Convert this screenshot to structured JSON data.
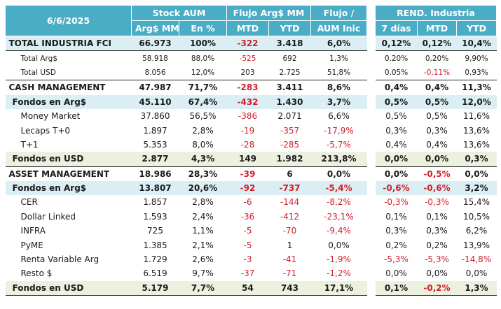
{
  "header": {
    "date": "6/6/2025",
    "stock_aum": "Stock AUM",
    "flujo": "Flujo Arg$ MM",
    "flujo_aum_1": "Flujo /",
    "flujo_aum_2": "AUM Inic",
    "arg_mm": "Arg$ MM",
    "en_pct": "En %",
    "mtd": "MTD",
    "ytd": "YTD",
    "rend_title": "REND. Industria",
    "rend_7d": "7 días",
    "rend_mtd": "MTD",
    "rend_ytd": "YTD"
  },
  "rows": [
    {
      "label": "TOTAL INDUSTRIA FCI",
      "arg": "66.973",
      "pct": "100%",
      "mtd": "-322",
      "ytd": "3.418",
      "flujo": "6,0%",
      "r7": "0,12%",
      "rmtd": "0,12%",
      "rytd": "10,4%"
    },
    {
      "label": "Total Arg$",
      "arg": "58.918",
      "pct": "88,0%",
      "mtd": "-525",
      "ytd": "692",
      "flujo": "1,3%",
      "r7": "0,20%",
      "rmtd": "0,20%",
      "rytd": "9,90%"
    },
    {
      "label": "Total USD",
      "arg": "8.056",
      "pct": "12,0%",
      "mtd": "203",
      "ytd": "2.725",
      "flujo": "51,8%",
      "r7": "0,05%",
      "rmtd": "-0,11%",
      "rytd": "0,93%"
    },
    {
      "label": "CASH MANAGEMENT",
      "arg": "47.987",
      "pct": "71,7%",
      "mtd": "-283",
      "ytd": "3.411",
      "flujo": "8,6%",
      "r7": "0,4%",
      "rmtd": "0,4%",
      "rytd": "11,3%"
    },
    {
      "label": "Fondos en Arg$",
      "arg": "45.110",
      "pct": "67,4%",
      "mtd": "-432",
      "ytd": "1.430",
      "flujo": "3,7%",
      "r7": "0,5%",
      "rmtd": "0,5%",
      "rytd": "12,0%"
    },
    {
      "label": "Money Market",
      "arg": "37.860",
      "pct": "56,5%",
      "mtd": "-386",
      "ytd": "2.071",
      "flujo": "6,6%",
      "r7": "0,5%",
      "rmtd": "0,5%",
      "rytd": "11,6%"
    },
    {
      "label": "Lecaps T+0",
      "arg": "1.897",
      "pct": "2,8%",
      "mtd": "-19",
      "ytd": "-357",
      "flujo": "-17,9%",
      "r7": "0,3%",
      "rmtd": "0,3%",
      "rytd": "13,6%"
    },
    {
      "label": "T+1",
      "arg": "5.353",
      "pct": "8,0%",
      "mtd": "-28",
      "ytd": "-285",
      "flujo": "-5,7%",
      "r7": "0,4%",
      "rmtd": "0,4%",
      "rytd": "13,6%"
    },
    {
      "label": "Fondos en USD",
      "arg": "2.877",
      "pct": "4,3%",
      "mtd": "149",
      "ytd": "1.982",
      "flujo": "213,8%",
      "r7": "0,0%",
      "rmtd": "0,0%",
      "rytd": "0,3%"
    },
    {
      "label": "ASSET MANAGEMENT",
      "arg": "18.986",
      "pct": "28,3%",
      "mtd": "-39",
      "ytd": "6",
      "flujo": "0,0%",
      "r7": "0,0%",
      "rmtd": "-0,5%",
      "rytd": "0,0%"
    },
    {
      "label": "Fondos en Arg$",
      "arg": "13.807",
      "pct": "20,6%",
      "mtd": "-92",
      "ytd": "-737",
      "flujo": "-5,4%",
      "r7": "-0,6%",
      "rmtd": "-0,6%",
      "rytd": "3,2%"
    },
    {
      "label": "CER",
      "arg": "1.857",
      "pct": "2,8%",
      "mtd": "-6",
      "ytd": "-144",
      "flujo": "-8,2%",
      "r7": "-0,3%",
      "rmtd": "-0,3%",
      "rytd": "15,4%"
    },
    {
      "label": "Dollar Linked",
      "arg": "1.593",
      "pct": "2,4%",
      "mtd": "-36",
      "ytd": "-412",
      "flujo": "-23,1%",
      "r7": "0,1%",
      "rmtd": "0,1%",
      "rytd": "10,5%"
    },
    {
      "label": "INFRA",
      "arg": "725",
      "pct": "1,1%",
      "mtd": "-5",
      "ytd": "-70",
      "flujo": "-9,4%",
      "r7": "0,3%",
      "rmtd": "0,3%",
      "rytd": "6,2%"
    },
    {
      "label": "PyME",
      "arg": "1.385",
      "pct": "2,1%",
      "mtd": "-5",
      "ytd": "1",
      "flujo": "0,0%",
      "r7": "0,2%",
      "rmtd": "0,2%",
      "rytd": "13,9%"
    },
    {
      "label": "Renta Variable Arg",
      "arg": "1.729",
      "pct": "2,6%",
      "mtd": "-3",
      "ytd": "-41",
      "flujo": "-1,9%",
      "r7": "-5,3%",
      "rmtd": "-5,3%",
      "rytd": "-14,8%"
    },
    {
      "label": "Resto $",
      "arg": "6.519",
      "pct": "9,7%",
      "mtd": "-37",
      "ytd": "-71",
      "flujo": "-1,2%",
      "r7": "0,0%",
      "rmtd": "0,0%",
      "rytd": "0,0%"
    },
    {
      "label": "Fondos en USD",
      "arg": "5.179",
      "pct": "7,7%",
      "mtd": "54",
      "ytd": "743",
      "flujo": "17,1%",
      "r7": "0,1%",
      "rmtd": "-0,2%",
      "rytd": "1,3%"
    }
  ],
  "colors": {
    "header_bg": "#4bacc6",
    "highlight_blue": "#daeef3",
    "highlight_green": "#ebf1de",
    "negative": "#d0202a"
  }
}
